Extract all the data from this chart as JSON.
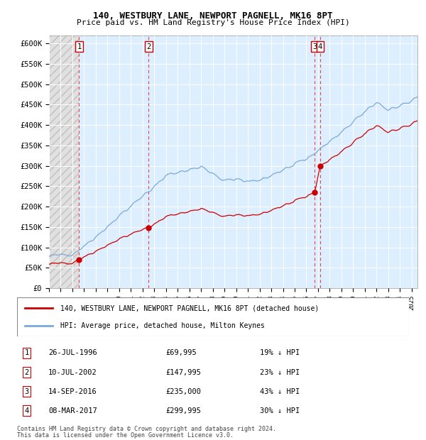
{
  "title": "140, WESTBURY LANE, NEWPORT PAGNELL, MK16 8PT",
  "subtitle": "Price paid vs. HM Land Registry's House Price Index (HPI)",
  "xlim": [
    1994.0,
    2025.5
  ],
  "ylim": [
    0,
    620000
  ],
  "yticks": [
    0,
    50000,
    100000,
    150000,
    200000,
    250000,
    300000,
    350000,
    400000,
    450000,
    500000,
    550000,
    600000
  ],
  "ytick_labels": [
    "£0",
    "£50K",
    "£100K",
    "£150K",
    "£200K",
    "£250K",
    "£300K",
    "£350K",
    "£400K",
    "£450K",
    "£500K",
    "£550K",
    "£600K"
  ],
  "sales": [
    {
      "year": 1996.57,
      "price": 69995,
      "label": "1",
      "date": "26-JUL-1996",
      "price_str": "£69,995",
      "pct": "19% ↓ HPI"
    },
    {
      "year": 2002.52,
      "price": 147995,
      "label": "2",
      "date": "10-JUL-2002",
      "price_str": "£147,995",
      "pct": "23% ↓ HPI"
    },
    {
      "year": 2016.71,
      "price": 235000,
      "label": "3",
      "date": "14-SEP-2016",
      "price_str": "£235,000",
      "pct": "43% ↓ HPI"
    },
    {
      "year": 2017.18,
      "price": 299995,
      "label": "4",
      "date": "08-MAR-2017",
      "price_str": "£299,995",
      "pct": "30% ↓ HPI"
    }
  ],
  "plot_bg_color": "#ddeeff",
  "grid_color": "#ffffff",
  "red_line_color": "#cc0000",
  "blue_line_color": "#7aaadd",
  "sale_marker_color": "#cc0000",
  "dashed_line_color": "#ee3333",
  "legend_label_red": "140, WESTBURY LANE, NEWPORT PAGNELL, MK16 8PT (detached house)",
  "legend_label_blue": "HPI: Average price, detached house, Milton Keynes",
  "footnote": "Contains HM Land Registry data © Crown copyright and database right 2024.\nThis data is licensed under the Open Government Licence v3.0.",
  "xtick_years": [
    1994,
    1995,
    1996,
    1997,
    1998,
    1999,
    2000,
    2001,
    2002,
    2003,
    2004,
    2005,
    2006,
    2007,
    2008,
    2009,
    2010,
    2011,
    2012,
    2013,
    2014,
    2015,
    2016,
    2017,
    2018,
    2019,
    2020,
    2021,
    2022,
    2023,
    2024,
    2025
  ]
}
